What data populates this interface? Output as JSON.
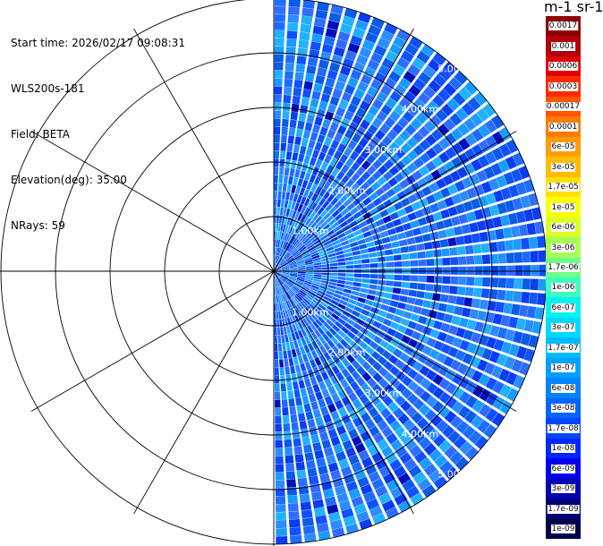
{
  "info": {
    "start_time": "Start time: 2026/02/17 09:08:31",
    "instrument": "WLS200s-181",
    "field": "Field: BETA",
    "elevation": "Elevation(deg): 35.00",
    "nrays": "NRays: 59"
  },
  "chart_data": {
    "type": "heatmap",
    "subtype": "polar-ppi",
    "units_title": "m-1 sr-1",
    "sector_azimuth_deg": [
      0,
      180
    ],
    "ray_count": 59,
    "max_range_km": 5.0,
    "range_rings_km": [
      1,
      2,
      3,
      4,
      5
    ],
    "range_ring_labels": [
      "1.00km",
      "2.00km",
      "3.00km",
      "4.00km",
      "5.00km"
    ],
    "spoke_azimuths_deg": [
      0,
      30,
      60,
      90,
      120,
      150,
      180,
      210,
      240,
      270,
      300,
      330
    ],
    "legend": [
      {
        "label": "0.0017",
        "color": "#8b0000"
      },
      {
        "label": "0.001",
        "color": "#b0000a"
      },
      {
        "label": "0.0006",
        "color": "#e00000"
      },
      {
        "label": "0.0003",
        "color": "#ff2a00"
      },
      {
        "label": "0.00017",
        "color": "#ff5500"
      },
      {
        "label": "0.0001",
        "color": "#ff7a00"
      },
      {
        "label": "6e-05",
        "color": "#ff9d00"
      },
      {
        "label": "3e-05",
        "color": "#ffbd00"
      },
      {
        "label": "1.7e-05",
        "color": "#ffe000"
      },
      {
        "label": "1e-05",
        "color": "#fbff00"
      },
      {
        "label": "6e-06",
        "color": "#d9ff26"
      },
      {
        "label": "3e-06",
        "color": "#a6ff55"
      },
      {
        "label": "1.7e-06",
        "color": "#6fff8a"
      },
      {
        "label": "1e-06",
        "color": "#3cffc0"
      },
      {
        "label": "6e-07",
        "color": "#00f5ef"
      },
      {
        "label": "3e-07",
        "color": "#00d9ff"
      },
      {
        "label": "1.7e-07",
        "color": "#00bcff"
      },
      {
        "label": "1e-07",
        "color": "#00a0ff"
      },
      {
        "label": "6e-08",
        "color": "#0083ff"
      },
      {
        "label": "3e-08",
        "color": "#0066ff"
      },
      {
        "label": "1.7e-08",
        "color": "#0047ff"
      },
      {
        "label": "1e-08",
        "color": "#0027ff"
      },
      {
        "label": "6e-09",
        "color": "#0000ee"
      },
      {
        "label": "3e-09",
        "color": "#0000b4"
      },
      {
        "label": "1.7e-09",
        "color": "#00007a"
      },
      {
        "label": "1e-09",
        "color": "#00004a"
      }
    ]
  }
}
